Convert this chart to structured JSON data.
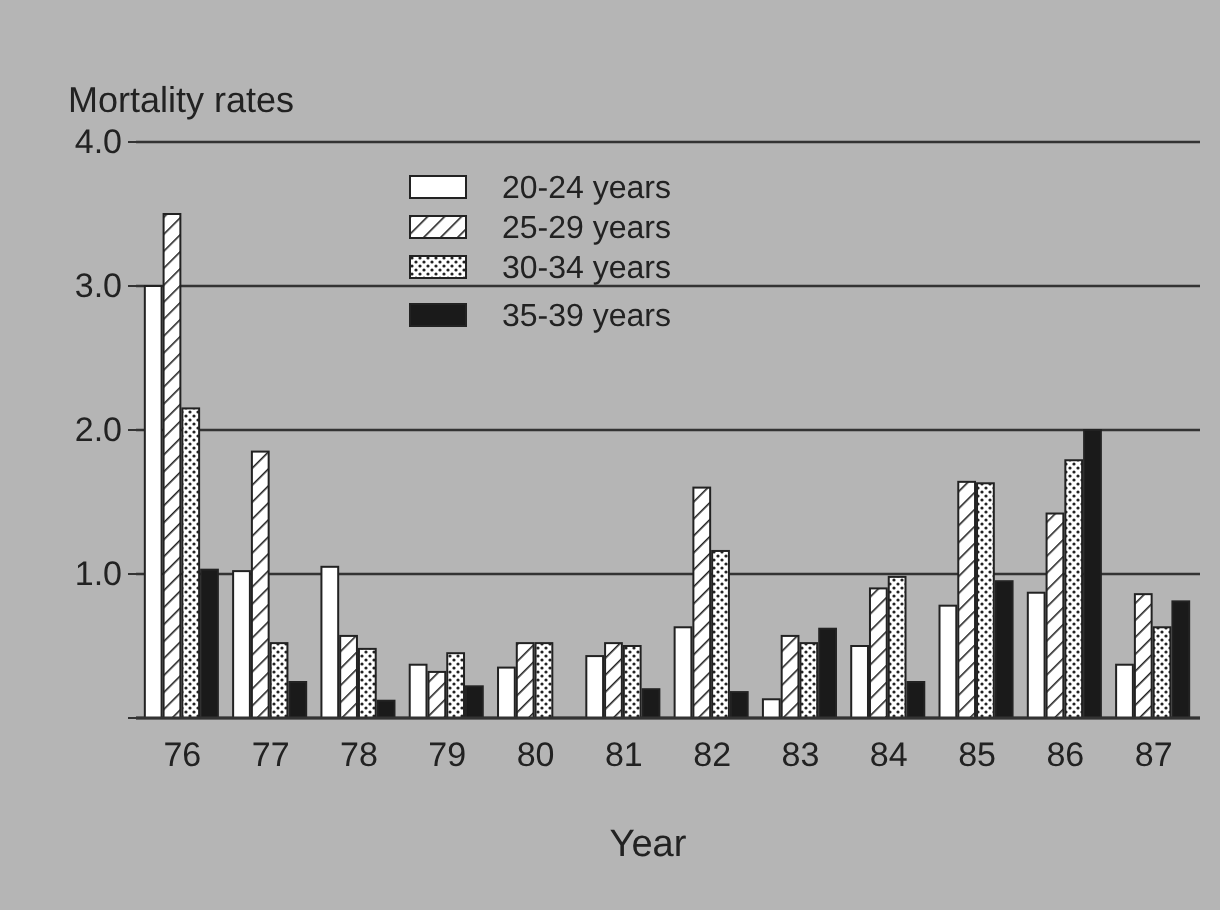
{
  "chart_data": {
    "type": "bar",
    "xlabel": "Year",
    "ylabel": "Mortality rates",
    "categories": [
      "76",
      "77",
      "78",
      "79",
      "80",
      "81",
      "82",
      "83",
      "84",
      "85",
      "86",
      "87"
    ],
    "series": [
      {
        "name": "20-24 years",
        "color": "#ffffff",
        "values": [
          3.0,
          1.02,
          1.05,
          0.37,
          0.35,
          0.43,
          0.63,
          0.13,
          0.5,
          0.78,
          0.87,
          0.37
        ]
      },
      {
        "name": "25-29 years",
        "color": "#222222",
        "values": [
          3.5,
          1.85,
          0.57,
          0.32,
          0.52,
          0.52,
          1.6,
          0.57,
          0.9,
          1.64,
          1.42,
          0.86
        ]
      },
      {
        "name": "30-34 years",
        "color": "#222222",
        "values": [
          2.15,
          0.52,
          0.48,
          0.45,
          0.52,
          0.5,
          1.16,
          0.52,
          0.98,
          1.63,
          1.79,
          0.63
        ]
      },
      {
        "name": "35-39 years",
        "color": "#1a1a1a",
        "values": [
          1.03,
          0.25,
          0.12,
          0.22,
          0,
          0.2,
          0.18,
          0.62,
          0.25,
          0.95,
          2.0,
          0.81
        ]
      }
    ],
    "ylim": [
      0,
      4
    ],
    "yticks": [
      {
        "value": 0,
        "label": null
      },
      {
        "value": 1,
        "label": "1.0"
      },
      {
        "value": 2,
        "label": "2.0"
      },
      {
        "value": 3,
        "label": "3.0"
      },
      {
        "value": 4,
        "label": "4.0"
      }
    ],
    "grid": "y",
    "legend": "top"
  }
}
